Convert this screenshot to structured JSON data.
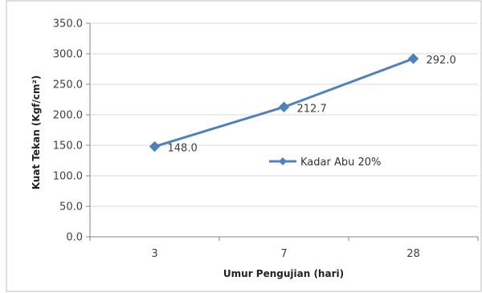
{
  "chart_data": {
    "type": "line",
    "title": "",
    "xlabel": "Umur Pengujian (hari)",
    "ylabel": "Kuat Tekan (Kgf/cm²)",
    "categories": [
      "3",
      "7",
      "28"
    ],
    "series": [
      {
        "name": "Kadar Abu 20%",
        "values": [
          148.0,
          212.7,
          292.0
        ],
        "data_labels": [
          "148.0",
          "212.7",
          "292.0"
        ],
        "color": "#4f81bd"
      }
    ],
    "ylim": [
      0,
      350
    ],
    "yticks": [
      0,
      50,
      100,
      150,
      200,
      250,
      300,
      350
    ],
    "ytick_labels": [
      "0.0",
      "50.0",
      "100.0",
      "150.0",
      "200.0",
      "250.0",
      "300.0",
      "350.0"
    ],
    "grid": "horizontal",
    "legend_position": "right-center",
    "marker": "diamond"
  }
}
